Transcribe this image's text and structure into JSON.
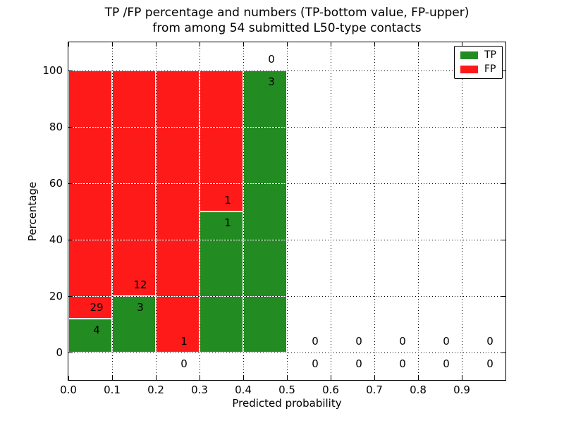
{
  "figure": {
    "title_line1": "TP /FP percentage and numbers (TP-bottom value, FP-upper)",
    "title_line2": "from among 54 submitted L50-type contacts"
  },
  "colors": {
    "tp": "#228b22",
    "fp": "#ff1a1a",
    "grid": "#000000",
    "spine": "#000000",
    "background": "#ffffff"
  },
  "chart_data": {
    "type": "bar",
    "stacked": true,
    "title": "TP /FP percentage and numbers (TP-bottom value, FP-upper)\nfrom among 54 submitted L50-type contacts",
    "xlabel": "Predicted probability",
    "ylabel": "Percentage",
    "xlim": [
      0.0,
      1.0
    ],
    "ylim": [
      -10,
      110
    ],
    "grid": true,
    "legend": {
      "position": "upper right",
      "entries": [
        {
          "label": "TP",
          "color": "#228b22"
        },
        {
          "label": "FP",
          "color": "#ff1a1a"
        }
      ]
    },
    "total_submitted_contacts": 54,
    "xticks": [
      0.0,
      0.1,
      0.2,
      0.3,
      0.4,
      0.5,
      0.6,
      0.7,
      0.8,
      0.9
    ],
    "xtick_labels": [
      "0.0",
      "0.1",
      "0.2",
      "0.3",
      "0.4",
      "0.5",
      "0.6",
      "0.7",
      "0.8",
      "0.9"
    ],
    "yticks": [
      0,
      20,
      40,
      60,
      80,
      100
    ],
    "ytick_labels": [
      "0",
      "20",
      "40",
      "60",
      "80",
      "100"
    ],
    "bins": [
      {
        "range": [
          0.0,
          0.1
        ],
        "tp": 4,
        "fp": 29,
        "tp_pct": 12.12,
        "fp_pct": 87.88
      },
      {
        "range": [
          0.1,
          0.2
        ],
        "tp": 3,
        "fp": 12,
        "tp_pct": 20,
        "fp_pct": 80
      },
      {
        "range": [
          0.2,
          0.3
        ],
        "tp": 0,
        "fp": 1,
        "tp_pct": 0,
        "fp_pct": 100
      },
      {
        "range": [
          0.3,
          0.4
        ],
        "tp": 1,
        "fp": 1,
        "tp_pct": 50,
        "fp_pct": 50
      },
      {
        "range": [
          0.4,
          0.5
        ],
        "tp": 3,
        "fp": 0,
        "tp_pct": 100,
        "fp_pct": 0
      },
      {
        "range": [
          0.5,
          0.6
        ],
        "tp": 0,
        "fp": 0,
        "tp_pct": 0,
        "fp_pct": 0
      },
      {
        "range": [
          0.6,
          0.7
        ],
        "tp": 0,
        "fp": 0,
        "tp_pct": 0,
        "fp_pct": 0
      },
      {
        "range": [
          0.7,
          0.8
        ],
        "tp": 0,
        "fp": 0,
        "tp_pct": 0,
        "fp_pct": 0
      },
      {
        "range": [
          0.8,
          0.9
        ],
        "tp": 0,
        "fp": 0,
        "tp_pct": 0,
        "fp_pct": 0
      },
      {
        "range": [
          0.9,
          1.0
        ],
        "tp": 0,
        "fp": 0,
        "tp_pct": 0,
        "fp_pct": 0
      }
    ]
  }
}
